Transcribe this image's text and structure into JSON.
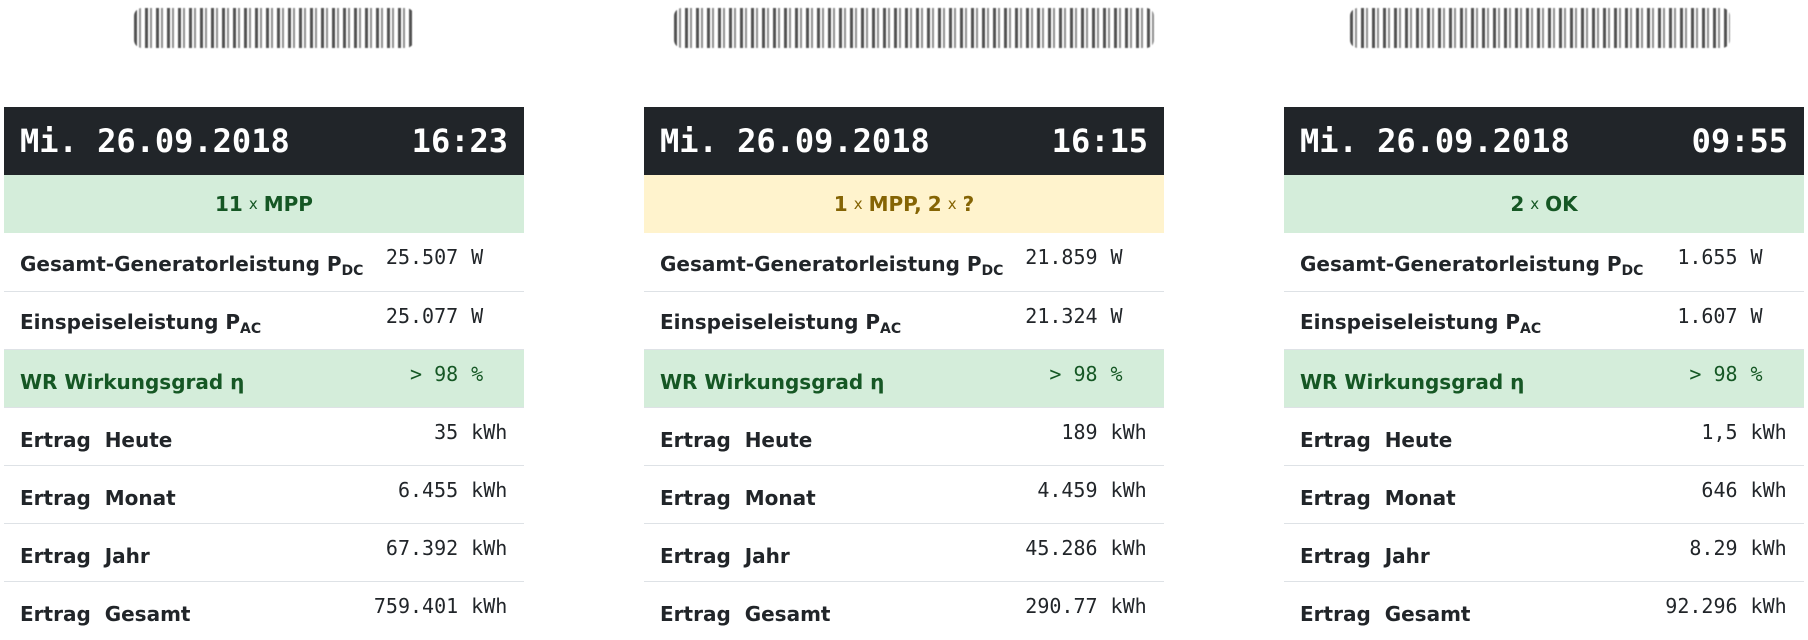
{
  "panels": [
    {
      "date": "Mi. 26.09.2018",
      "time": "16:23",
      "status": {
        "count1": "11",
        "x": "x",
        "label1": "MPP",
        "sep": "",
        "count2": "",
        "x2": "",
        "label2": "",
        "tone": "ok"
      },
      "rows": [
        {
          "label": "Gesamt-Generatorleistung P",
          "sub": "DC",
          "value": "25.507",
          "unit": "W"
        },
        {
          "label": "Einspeiseleistung P",
          "sub": "AC",
          "value": "25.077",
          "unit": "W"
        },
        {
          "label": "WR Wirkungsgrad η",
          "sub": "",
          "value": "> 98",
          "unit": "%"
        },
        {
          "label": "Ertrag  Heute",
          "sub": "",
          "value": "35",
          "unit": "kWh"
        },
        {
          "label": "Ertrag  Monat",
          "sub": "",
          "value": "6.455",
          "unit": "kWh"
        },
        {
          "label": "Ertrag  Jahr",
          "sub": "",
          "value": "67.392",
          "unit": "kWh"
        },
        {
          "label": "Ertrag  Gesamt",
          "sub": "",
          "value": "759.401",
          "unit": "kWh"
        }
      ]
    },
    {
      "date": "Mi. 26.09.2018",
      "time": "16:15",
      "status": {
        "count1": "1",
        "x": "x",
        "label1": "MPP,",
        "sep": "",
        "count2": "2",
        "x2": "x",
        "label2": "?",
        "tone": "warn"
      },
      "rows": [
        {
          "label": "Gesamt-Generatorleistung P",
          "sub": "DC",
          "value": "21.859",
          "unit": "W"
        },
        {
          "label": "Einspeiseleistung P",
          "sub": "AC",
          "value": "21.324",
          "unit": "W"
        },
        {
          "label": "WR Wirkungsgrad η",
          "sub": "",
          "value": "> 98",
          "unit": "%"
        },
        {
          "label": "Ertrag  Heute",
          "sub": "",
          "value": "189",
          "unit": "kWh"
        },
        {
          "label": "Ertrag  Monat",
          "sub": "",
          "value": "4.459",
          "unit": "kWh"
        },
        {
          "label": "Ertrag  Jahr",
          "sub": "",
          "value": "45.286",
          "unit": "kWh"
        },
        {
          "label": "Ertrag  Gesamt",
          "sub": "",
          "value": "290.77",
          "unit": "kWh"
        }
      ]
    },
    {
      "date": "Mi. 26.09.2018",
      "time": "09:55",
      "status": {
        "count1": "2",
        "x": "x",
        "label1": "OK",
        "sep": "",
        "count2": "",
        "x2": "",
        "label2": "",
        "tone": "ok"
      },
      "rows": [
        {
          "label": "Gesamt-Generatorleistung P",
          "sub": "DC",
          "value": "1.655",
          "unit": "W"
        },
        {
          "label": "Einspeiseleistung P",
          "sub": "AC",
          "value": "1.607",
          "unit": "W"
        },
        {
          "label": "WR Wirkungsgrad η",
          "sub": "",
          "value": "> 98",
          "unit": "%"
        },
        {
          "label": "Ertrag  Heute",
          "sub": "",
          "value": "1,5",
          "unit": "kWh"
        },
        {
          "label": "Ertrag  Monat",
          "sub": "",
          "value": "646",
          "unit": "kWh"
        },
        {
          "label": "Ertrag  Jahr",
          "sub": "",
          "value": "8.29",
          "unit": "kWh"
        },
        {
          "label": "Ertrag  Gesamt",
          "sub": "",
          "value": "92.296",
          "unit": "kWh"
        }
      ]
    }
  ],
  "colors": {
    "header_bg": "#212529",
    "ok_bg": "#d4edda",
    "ok_fg": "#155724",
    "warn_bg": "#fff3cd",
    "warn_fg": "#856404",
    "row_border": "#dee2e6"
  }
}
